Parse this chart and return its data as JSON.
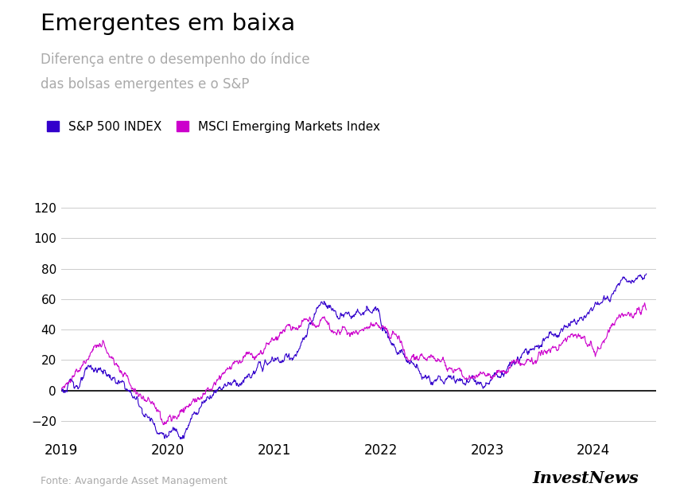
{
  "title": "Emergentes em baixa",
  "subtitle_line1": "Diferença entre o desempenho do índice",
  "subtitle_line2": "das bolsas emergentes e o S&P",
  "legend_sp500": "S&P 500 INDEX",
  "legend_msci": "MSCI Emerging Markets Index",
  "sp500_color": "#3300cc",
  "msci_color": "#cc00cc",
  "zero_line_color": "#222222",
  "grid_color": "#cccccc",
  "bg_color": "#ffffff",
  "title_color": "#000000",
  "subtitle_color": "#aaaaaa",
  "source_color": "#aaaaaa",
  "source_text": "Fonte: Avangarde Asset Management",
  "brand_text": "InvestNews",
  "yticks": [
    -20,
    0,
    20,
    40,
    60,
    80,
    100,
    120
  ],
  "xtick_labels": [
    "2019",
    "2020",
    "2021",
    "2022",
    "2023",
    "2024"
  ],
  "ylim": [
    -32,
    132
  ]
}
